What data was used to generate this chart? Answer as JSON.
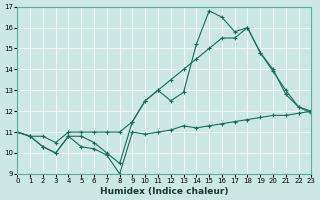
{
  "xlabel": "Humidex (Indice chaleur)",
  "xlim": [
    0,
    23
  ],
  "ylim": [
    9,
    17
  ],
  "xticks": [
    0,
    1,
    2,
    3,
    4,
    5,
    6,
    7,
    8,
    9,
    10,
    11,
    12,
    13,
    14,
    15,
    16,
    17,
    18,
    19,
    20,
    21,
    22,
    23
  ],
  "yticks": [
    9,
    10,
    11,
    12,
    13,
    14,
    15,
    16,
    17
  ],
  "bg_color": "#cce8e4",
  "line_color": "#1a6b5a",
  "line1_x": [
    0,
    1,
    2,
    3,
    4,
    5,
    6,
    7,
    8,
    9,
    10,
    11,
    12,
    13,
    14,
    15,
    16,
    17,
    18,
    19,
    20,
    21,
    22,
    23
  ],
  "line1_y": [
    11.0,
    10.8,
    10.3,
    10.0,
    10.8,
    10.3,
    10.2,
    9.9,
    9.0,
    11.0,
    10.9,
    11.0,
    11.1,
    11.3,
    11.2,
    11.3,
    11.4,
    11.5,
    11.6,
    11.7,
    11.8,
    11.8,
    11.9,
    12.0
  ],
  "line2_x": [
    0,
    1,
    2,
    3,
    4,
    5,
    6,
    7,
    8,
    9,
    10,
    11,
    12,
    13,
    14,
    15,
    16,
    17,
    18,
    19,
    20,
    21,
    22,
    23
  ],
  "line2_y": [
    11.0,
    10.8,
    10.3,
    10.0,
    10.8,
    10.8,
    10.5,
    10.0,
    9.5,
    11.5,
    12.5,
    13.0,
    12.5,
    12.9,
    15.2,
    16.8,
    16.5,
    15.8,
    16.0,
    14.8,
    13.9,
    13.0,
    12.2,
    12.0
  ],
  "line3_x": [
    0,
    1,
    2,
    3,
    4,
    5,
    6,
    7,
    8,
    9,
    10,
    11,
    12,
    13,
    14,
    15,
    16,
    17,
    18,
    19,
    20,
    21,
    22,
    23
  ],
  "line3_y": [
    11.0,
    10.8,
    10.8,
    10.5,
    11.0,
    11.0,
    11.0,
    11.0,
    11.0,
    11.5,
    12.5,
    13.0,
    13.5,
    14.0,
    14.5,
    15.0,
    15.5,
    15.5,
    16.0,
    14.8,
    14.0,
    12.8,
    12.2,
    11.9
  ]
}
